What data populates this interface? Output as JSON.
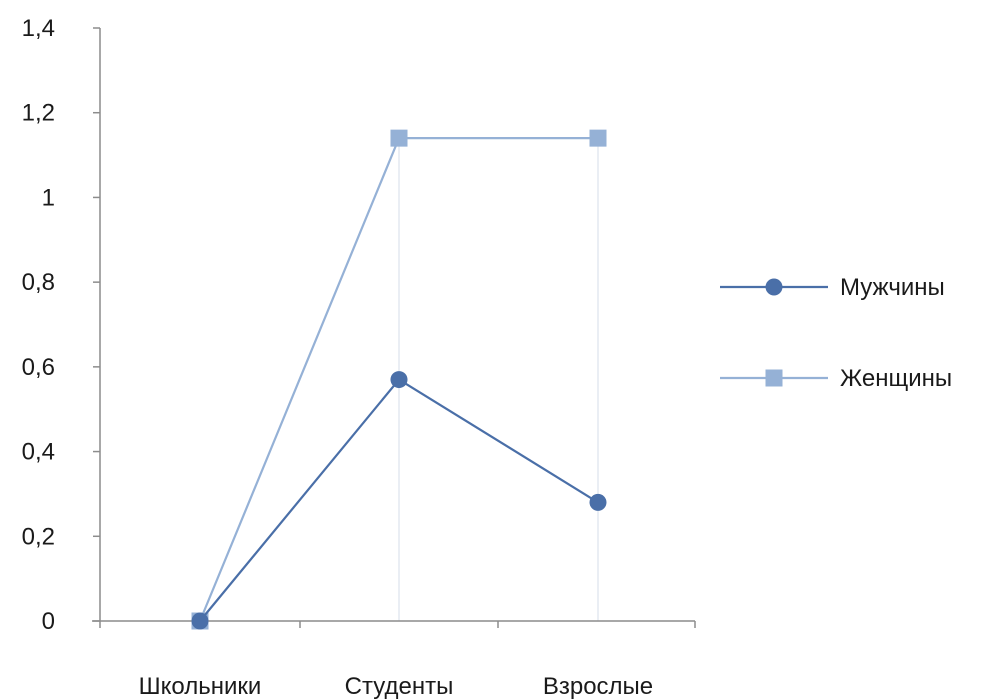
{
  "chart_data": {
    "type": "line",
    "categories": [
      "Школьники",
      "Студенты",
      "Взрослые"
    ],
    "yticks": [
      "0",
      "0,2",
      "0,4",
      "0,6",
      "0,8",
      "1",
      "1,2",
      "1,4"
    ],
    "ylim": [
      0,
      1.4
    ],
    "ytick_step": 0.2,
    "grid": "vertical at categories",
    "legend_position": "right",
    "series": [
      {
        "name": "Мужчины",
        "values": [
          0,
          0.57,
          0.28
        ],
        "color": "#4a6fa8",
        "marker": "circle"
      },
      {
        "name": "Женщины",
        "values": [
          0,
          1.14,
          1.14
        ],
        "color": "#95b1d6",
        "marker": "square"
      }
    ]
  }
}
